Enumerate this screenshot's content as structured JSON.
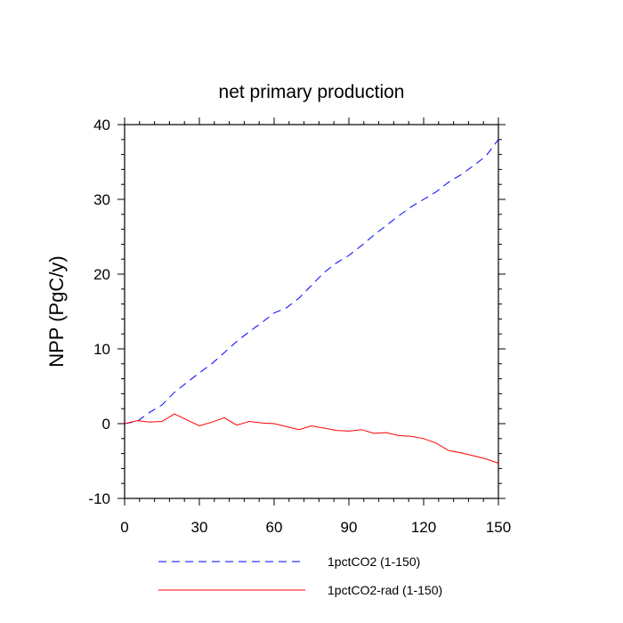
{
  "chart_data": {
    "type": "line",
    "title": "net primary production",
    "xlabel": "",
    "ylabel": "NPP  (PgC/y)",
    "xlim": [
      0,
      150
    ],
    "ylim": [
      -10,
      40
    ],
    "xticks": [
      0,
      30,
      60,
      90,
      120,
      150
    ],
    "yticks": [
      -10,
      0,
      10,
      20,
      30,
      40
    ],
    "grid": false,
    "legend_position": "bottom",
    "series": [
      {
        "name": "1pctCO2 (1-150)",
        "color": "#0000ff",
        "style": "dashed",
        "x": [
          0,
          5,
          10,
          15,
          20,
          25,
          30,
          35,
          40,
          45,
          50,
          55,
          60,
          65,
          70,
          75,
          80,
          85,
          90,
          95,
          100,
          105,
          110,
          115,
          120,
          125,
          130,
          135,
          140,
          145,
          150
        ],
        "y": [
          0,
          0.3,
          1.5,
          2.5,
          4.2,
          5.5,
          6.8,
          8,
          9.5,
          11,
          12.3,
          13.5,
          14.8,
          15.5,
          16.8,
          18.5,
          20.2,
          21.5,
          22.5,
          23.8,
          25.2,
          26.5,
          27.8,
          29,
          30,
          31,
          32.3,
          33.3,
          34.5,
          35.8,
          38
        ]
      },
      {
        "name": "1pctCO2-rad (1-150)",
        "color": "#ff0000",
        "style": "solid",
        "x": [
          0,
          5,
          10,
          15,
          20,
          25,
          30,
          35,
          40,
          45,
          50,
          55,
          60,
          65,
          70,
          75,
          80,
          85,
          90,
          95,
          100,
          105,
          110,
          115,
          120,
          125,
          130,
          135,
          140,
          145,
          150
        ],
        "y": [
          0,
          0.4,
          0.2,
          0.3,
          1.3,
          0.5,
          -0.3,
          0.2,
          0.8,
          -0.2,
          0.3,
          0.1,
          0,
          -0.4,
          -0.8,
          -0.3,
          -0.6,
          -0.9,
          -1.0,
          -0.8,
          -1.3,
          -1.2,
          -1.6,
          -1.7,
          -2.0,
          -2.6,
          -3.6,
          -3.9,
          -4.3,
          -4.7,
          -5.3
        ]
      }
    ]
  }
}
